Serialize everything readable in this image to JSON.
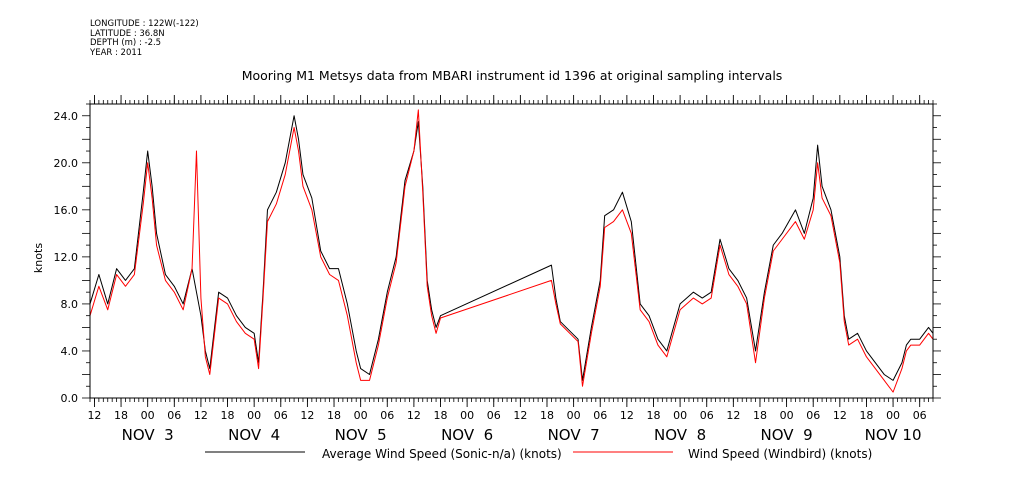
{
  "header": {
    "lines": [
      "LONGITUDE : 122W(-122)",
      "LATITUDE : 36.8N",
      "DEPTH (m) : -2.5",
      "YEAR : 2011"
    ]
  },
  "chart_data": {
    "type": "line",
    "title": "Mooring M1 Metsys data from MBARI instrument id 1396 at original sampling intervals",
    "ylabel": "knots",
    "xlabel": "",
    "ylim": [
      0,
      25
    ],
    "yticks": [
      "0.0",
      "4.0",
      "8.0",
      "12.0",
      "16.0",
      "20.0",
      "24.0"
    ],
    "xlim": [
      "2011-11-02T11:00",
      "2011-11-10T09:00"
    ],
    "x_hour_ticks": [
      {
        "t": "2011-11-02T12:00",
        "label": "12"
      },
      {
        "t": "2011-11-02T18:00",
        "label": "18"
      },
      {
        "t": "2011-11-03T00:00",
        "label": "00"
      },
      {
        "t": "2011-11-03T06:00",
        "label": "06"
      },
      {
        "t": "2011-11-03T12:00",
        "label": "12"
      },
      {
        "t": "2011-11-03T18:00",
        "label": "18"
      },
      {
        "t": "2011-11-04T00:00",
        "label": "00"
      },
      {
        "t": "2011-11-04T06:00",
        "label": "06"
      },
      {
        "t": "2011-11-04T12:00",
        "label": "12"
      },
      {
        "t": "2011-11-04T18:00",
        "label": "18"
      },
      {
        "t": "2011-11-05T00:00",
        "label": "00"
      },
      {
        "t": "2011-11-05T06:00",
        "label": "06"
      },
      {
        "t": "2011-11-05T12:00",
        "label": "12"
      },
      {
        "t": "2011-11-05T18:00",
        "label": "18"
      },
      {
        "t": "2011-11-06T00:00",
        "label": "00"
      },
      {
        "t": "2011-11-06T06:00",
        "label": "06"
      },
      {
        "t": "2011-11-06T12:00",
        "label": "12"
      },
      {
        "t": "2011-11-06T18:00",
        "label": "18"
      },
      {
        "t": "2011-11-07T00:00",
        "label": "00"
      },
      {
        "t": "2011-11-07T06:00",
        "label": "06"
      },
      {
        "t": "2011-11-07T12:00",
        "label": "12"
      },
      {
        "t": "2011-11-07T18:00",
        "label": "18"
      },
      {
        "t": "2011-11-08T00:00",
        "label": "00"
      },
      {
        "t": "2011-11-08T06:00",
        "label": "06"
      },
      {
        "t": "2011-11-08T12:00",
        "label": "12"
      },
      {
        "t": "2011-11-08T18:00",
        "label": "18"
      },
      {
        "t": "2011-11-09T00:00",
        "label": "00"
      },
      {
        "t": "2011-11-09T06:00",
        "label": "06"
      },
      {
        "t": "2011-11-09T12:00",
        "label": "12"
      },
      {
        "t": "2011-11-09T18:00",
        "label": "18"
      },
      {
        "t": "2011-11-10T00:00",
        "label": "00"
      },
      {
        "t": "2011-11-10T06:00",
        "label": "06"
      }
    ],
    "x_day_labels": [
      {
        "t": "2011-11-03T00:00",
        "label": "NOV  3"
      },
      {
        "t": "2011-11-04T00:00",
        "label": "NOV  4"
      },
      {
        "t": "2011-11-05T00:00",
        "label": "NOV  5"
      },
      {
        "t": "2011-11-06T00:00",
        "label": "NOV  6"
      },
      {
        "t": "2011-11-07T00:00",
        "label": "NOV  7"
      },
      {
        "t": "2011-11-08T00:00",
        "label": "NOV  8"
      },
      {
        "t": "2011-11-09T00:00",
        "label": "NOV  9"
      },
      {
        "t": "2011-11-10T00:00",
        "label": "NOV 10"
      }
    ],
    "series": [
      {
        "name": "Average Wind Speed (Sonic-n/a) (knots)",
        "color": "#000000",
        "points": [
          [
            "2011-11-02T11:00",
            8.0
          ],
          [
            "2011-11-02T13:00",
            10.5
          ],
          [
            "2011-11-02T15:00",
            8.0
          ],
          [
            "2011-11-02T17:00",
            11.0
          ],
          [
            "2011-11-02T19:00",
            10.0
          ],
          [
            "2011-11-02T21:00",
            11.0
          ],
          [
            "2011-11-02T23:00",
            17.5
          ],
          [
            "2011-11-03T00:00",
            21.0
          ],
          [
            "2011-11-03T01:00",
            18.0
          ],
          [
            "2011-11-03T02:00",
            14.0
          ],
          [
            "2011-11-03T04:00",
            10.5
          ],
          [
            "2011-11-03T06:00",
            9.5
          ],
          [
            "2011-11-03T08:00",
            8.0
          ],
          [
            "2011-11-03T10:00",
            11.0
          ],
          [
            "2011-11-03T11:00",
            9.0
          ],
          [
            "2011-11-03T12:00",
            7.0
          ],
          [
            "2011-11-03T13:00",
            4.0
          ],
          [
            "2011-11-03T14:00",
            2.5
          ],
          [
            "2011-11-03T16:00",
            9.0
          ],
          [
            "2011-11-03T18:00",
            8.5
          ],
          [
            "2011-11-03T20:00",
            7.0
          ],
          [
            "2011-11-03T22:00",
            6.0
          ],
          [
            "2011-11-04T00:00",
            5.5
          ],
          [
            "2011-11-04T01:00",
            3.0
          ],
          [
            "2011-11-04T02:00",
            9.0
          ],
          [
            "2011-11-04T03:00",
            16.0
          ],
          [
            "2011-11-04T05:00",
            17.5
          ],
          [
            "2011-11-04T07:00",
            20.0
          ],
          [
            "2011-11-04T08:00",
            22.0
          ],
          [
            "2011-11-04T09:00",
            24.0
          ],
          [
            "2011-11-04T10:00",
            22.0
          ],
          [
            "2011-11-04T11:00",
            19.0
          ],
          [
            "2011-11-04T13:00",
            17.0
          ],
          [
            "2011-11-04T15:00",
            12.5
          ],
          [
            "2011-11-04T17:00",
            11.0
          ],
          [
            "2011-11-04T19:00",
            11.0
          ],
          [
            "2011-11-04T21:00",
            8.0
          ],
          [
            "2011-11-04T23:00",
            4.0
          ],
          [
            "2011-11-05T00:00",
            2.5
          ],
          [
            "2011-11-05T02:00",
            2.0
          ],
          [
            "2011-11-05T04:00",
            5.0
          ],
          [
            "2011-11-05T06:00",
            9.0
          ],
          [
            "2011-11-05T08:00",
            12.0
          ],
          [
            "2011-11-05T10:00",
            18.5
          ],
          [
            "2011-11-05T12:00",
            21.0
          ],
          [
            "2011-11-05T13:00",
            23.5
          ],
          [
            "2011-11-05T14:00",
            18.0
          ],
          [
            "2011-11-05T15:00",
            10.0
          ],
          [
            "2011-11-05T16:00",
            7.5
          ],
          [
            "2011-11-05T17:00",
            6.0
          ],
          [
            "2011-11-05T18:00",
            7.0
          ],
          [
            "2011-11-06T19:00",
            11.3
          ],
          [
            "2011-11-06T20:00",
            8.5
          ],
          [
            "2011-11-06T21:00",
            6.5
          ],
          [
            "2011-11-07T01:00",
            5.0
          ],
          [
            "2011-11-07T02:00",
            1.5
          ],
          [
            "2011-11-07T04:00",
            6.0
          ],
          [
            "2011-11-07T06:00",
            10.0
          ],
          [
            "2011-11-07T07:00",
            15.5
          ],
          [
            "2011-11-07T09:00",
            16.0
          ],
          [
            "2011-11-07T11:00",
            17.5
          ],
          [
            "2011-11-07T13:00",
            15.0
          ],
          [
            "2011-11-07T15:00",
            8.0
          ],
          [
            "2011-11-07T17:00",
            7.0
          ],
          [
            "2011-11-07T19:00",
            5.0
          ],
          [
            "2011-11-07T21:00",
            4.0
          ],
          [
            "2011-11-08T00:00",
            8.0
          ],
          [
            "2011-11-08T03:00",
            9.0
          ],
          [
            "2011-11-08T05:00",
            8.5
          ],
          [
            "2011-11-08T07:00",
            9.0
          ],
          [
            "2011-11-08T09:00",
            13.5
          ],
          [
            "2011-11-08T11:00",
            11.0
          ],
          [
            "2011-11-08T13:00",
            10.0
          ],
          [
            "2011-11-08T15:00",
            8.5
          ],
          [
            "2011-11-08T17:00",
            4.0
          ],
          [
            "2011-11-08T19:00",
            9.0
          ],
          [
            "2011-11-08T21:00",
            13.0
          ],
          [
            "2011-11-08T23:00",
            14.0
          ],
          [
            "2011-11-09T02:00",
            16.0
          ],
          [
            "2011-11-09T04:00",
            14.0
          ],
          [
            "2011-11-09T06:00",
            17.0
          ],
          [
            "2011-11-09T07:00",
            21.5
          ],
          [
            "2011-11-09T08:00",
            18.0
          ],
          [
            "2011-11-09T10:00",
            16.0
          ],
          [
            "2011-11-09T12:00",
            12.0
          ],
          [
            "2011-11-09T13:00",
            7.0
          ],
          [
            "2011-11-09T14:00",
            5.0
          ],
          [
            "2011-11-09T16:00",
            5.5
          ],
          [
            "2011-11-09T18:00",
            4.0
          ],
          [
            "2011-11-09T20:00",
            3.0
          ],
          [
            "2011-11-09T22:00",
            2.0
          ],
          [
            "2011-11-10T00:00",
            1.5
          ],
          [
            "2011-11-10T02:00",
            3.0
          ],
          [
            "2011-11-10T03:00",
            4.5
          ],
          [
            "2011-11-10T04:00",
            5.0
          ],
          [
            "2011-11-10T06:00",
            5.0
          ],
          [
            "2011-11-10T08:00",
            6.0
          ],
          [
            "2011-11-10T09:00",
            5.5
          ]
        ]
      },
      {
        "name": "Wind Speed (Windbird) (knots)",
        "color": "#ff0000",
        "points": [
          [
            "2011-11-02T11:00",
            7.0
          ],
          [
            "2011-11-02T13:00",
            9.5
          ],
          [
            "2011-11-02T15:00",
            7.5
          ],
          [
            "2011-11-02T17:00",
            10.5
          ],
          [
            "2011-11-02T19:00",
            9.5
          ],
          [
            "2011-11-02T21:00",
            10.5
          ],
          [
            "2011-11-02T23:00",
            16.5
          ],
          [
            "2011-11-03T00:00",
            20.0
          ],
          [
            "2011-11-03T01:00",
            17.0
          ],
          [
            "2011-11-03T02:00",
            13.0
          ],
          [
            "2011-11-03T04:00",
            10.0
          ],
          [
            "2011-11-03T06:00",
            9.0
          ],
          [
            "2011-11-03T08:00",
            7.5
          ],
          [
            "2011-11-03T10:00",
            11.0
          ],
          [
            "2011-11-03T11:00",
            21.0
          ],
          [
            "2011-11-03T12:00",
            8.5
          ],
          [
            "2011-11-03T13:00",
            3.5
          ],
          [
            "2011-11-03T14:00",
            2.0
          ],
          [
            "2011-11-03T16:00",
            8.5
          ],
          [
            "2011-11-03T18:00",
            8.0
          ],
          [
            "2011-11-03T20:00",
            6.5
          ],
          [
            "2011-11-03T22:00",
            5.5
          ],
          [
            "2011-11-04T00:00",
            5.0
          ],
          [
            "2011-11-04T01:00",
            2.5
          ],
          [
            "2011-11-04T02:00",
            8.5
          ],
          [
            "2011-11-04T03:00",
            15.0
          ],
          [
            "2011-11-04T05:00",
            16.5
          ],
          [
            "2011-11-04T07:00",
            19.0
          ],
          [
            "2011-11-04T08:00",
            21.0
          ],
          [
            "2011-11-04T09:00",
            23.0
          ],
          [
            "2011-11-04T10:00",
            21.0
          ],
          [
            "2011-11-04T11:00",
            18.0
          ],
          [
            "2011-11-04T13:00",
            16.0
          ],
          [
            "2011-11-04T15:00",
            12.0
          ],
          [
            "2011-11-04T17:00",
            10.5
          ],
          [
            "2011-11-04T19:00",
            10.0
          ],
          [
            "2011-11-04T21:00",
            7.0
          ],
          [
            "2011-11-04T23:00",
            3.0
          ],
          [
            "2011-11-05T00:00",
            1.5
          ],
          [
            "2011-11-05T02:00",
            1.5
          ],
          [
            "2011-11-05T04:00",
            4.5
          ],
          [
            "2011-11-05T06:00",
            8.5
          ],
          [
            "2011-11-05T08:00",
            11.5
          ],
          [
            "2011-11-05T10:00",
            18.0
          ],
          [
            "2011-11-05T12:00",
            21.0
          ],
          [
            "2011-11-05T13:00",
            24.5
          ],
          [
            "2011-11-05T14:00",
            17.5
          ],
          [
            "2011-11-05T15:00",
            9.5
          ],
          [
            "2011-11-05T16:00",
            7.0
          ],
          [
            "2011-11-05T17:00",
            5.5
          ],
          [
            "2011-11-05T18:00",
            6.8
          ],
          [
            "2011-11-06T19:00",
            10.0
          ],
          [
            "2011-11-06T20:00",
            8.0
          ],
          [
            "2011-11-06T21:00",
            6.3
          ],
          [
            "2011-11-07T01:00",
            4.8
          ],
          [
            "2011-11-07T02:00",
            1.0
          ],
          [
            "2011-11-07T04:00",
            5.5
          ],
          [
            "2011-11-07T06:00",
            9.5
          ],
          [
            "2011-11-07T07:00",
            14.5
          ],
          [
            "2011-11-07T09:00",
            15.0
          ],
          [
            "2011-11-07T11:00",
            16.0
          ],
          [
            "2011-11-07T13:00",
            14.0
          ],
          [
            "2011-11-07T15:00",
            7.5
          ],
          [
            "2011-11-07T17:00",
            6.5
          ],
          [
            "2011-11-07T19:00",
            4.5
          ],
          [
            "2011-11-07T21:00",
            3.5
          ],
          [
            "2011-11-08T00:00",
            7.5
          ],
          [
            "2011-11-08T03:00",
            8.5
          ],
          [
            "2011-11-08T05:00",
            8.0
          ],
          [
            "2011-11-08T07:00",
            8.5
          ],
          [
            "2011-11-08T09:00",
            13.0
          ],
          [
            "2011-11-08T11:00",
            10.5
          ],
          [
            "2011-11-08T13:00",
            9.5
          ],
          [
            "2011-11-08T15:00",
            8.0
          ],
          [
            "2011-11-08T17:00",
            3.0
          ],
          [
            "2011-11-08T19:00",
            8.5
          ],
          [
            "2011-11-08T21:00",
            12.5
          ],
          [
            "2011-11-08T23:00",
            13.5
          ],
          [
            "2011-11-09T02:00",
            15.0
          ],
          [
            "2011-11-09T04:00",
            13.5
          ],
          [
            "2011-11-09T06:00",
            16.0
          ],
          [
            "2011-11-09T07:00",
            20.0
          ],
          [
            "2011-11-09T08:00",
            17.0
          ],
          [
            "2011-11-09T10:00",
            15.5
          ],
          [
            "2011-11-09T12:00",
            11.5
          ],
          [
            "2011-11-09T13:00",
            6.5
          ],
          [
            "2011-11-09T14:00",
            4.5
          ],
          [
            "2011-11-09T16:00",
            5.0
          ],
          [
            "2011-11-09T18:00",
            3.5
          ],
          [
            "2011-11-09T20:00",
            2.5
          ],
          [
            "2011-11-09T22:00",
            1.5
          ],
          [
            "2011-11-10T00:00",
            0.5
          ],
          [
            "2011-11-10T02:00",
            2.5
          ],
          [
            "2011-11-10T03:00",
            4.0
          ],
          [
            "2011-11-10T04:00",
            4.5
          ],
          [
            "2011-11-10T06:00",
            4.5
          ],
          [
            "2011-11-10T08:00",
            5.5
          ],
          [
            "2011-11-10T09:00",
            5.0
          ]
        ]
      }
    ],
    "legend_position": "bottom"
  }
}
